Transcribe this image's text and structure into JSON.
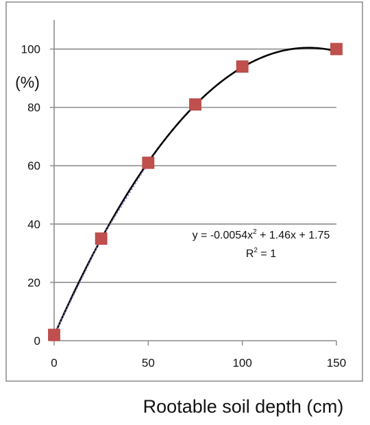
{
  "chart_data": {
    "type": "scatter",
    "title": "",
    "xlabel": "Rootable soil depth (cm)",
    "ylabel": "(%)",
    "xlim": [
      0,
      150
    ],
    "ylim": [
      0,
      110
    ],
    "x_ticks": [
      0,
      50,
      100,
      150
    ],
    "y_ticks": [
      0,
      20,
      40,
      60,
      80,
      100
    ],
    "x_tick_labels": [
      "0",
      "50",
      "100",
      "150"
    ],
    "y_tick_labels": [
      "0",
      "20",
      "40",
      "60",
      "80",
      "100"
    ],
    "grid": "horizontal",
    "legend": "none",
    "series": [
      {
        "type": "scatter",
        "marker": "square",
        "color": "#c0504d",
        "x": [
          0,
          25,
          50,
          75,
          100,
          150
        ],
        "y": [
          2,
          35,
          61,
          81,
          94,
          100
        ]
      }
    ],
    "trendlines": [
      {
        "kind": "polynomial",
        "coefficients": [
          -0.0054,
          1.46,
          1.75
        ],
        "x_range": [
          0,
          150
        ],
        "color": "#000000",
        "style": "solid"
      },
      {
        "kind": "linear",
        "points": [
          [
            0,
            2
          ],
          [
            25,
            35
          ],
          [
            50,
            61
          ]
        ],
        "color": "#7f6bb5",
        "style": "dotted"
      }
    ],
    "annotations": [
      {
        "text_before_exp": "y = -0.0054x",
        "exponent": "2",
        "text_after_exp": " + 1.46x + 1.75"
      },
      {
        "text_before_exp": "R",
        "exponent": "2",
        "text_after_exp": " = 1"
      }
    ]
  }
}
